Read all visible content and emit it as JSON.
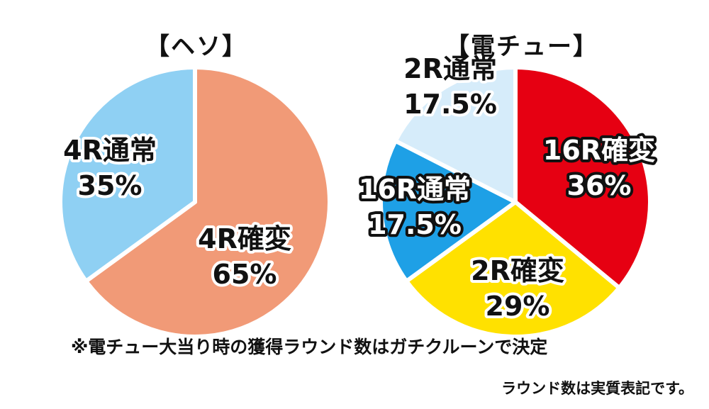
{
  "chart_data": [
    {
      "type": "pie",
      "title": "【ヘソ】",
      "slices": [
        {
          "name": "4R確変",
          "value": 65,
          "value_label": "65%",
          "color": "#f19a77"
        },
        {
          "name": "4R通常",
          "value": 35,
          "value_label": "35%",
          "color": "#8fd0f3"
        }
      ]
    },
    {
      "type": "pie",
      "title": "【電チュー】",
      "slices": [
        {
          "name": "16R確変",
          "value": 36,
          "value_label": "36%",
          "color": "#e60012",
          "label_color": "#ffffff"
        },
        {
          "name": "2R確変",
          "value": 29,
          "value_label": "29%",
          "color": "#ffe100",
          "label_color": "#111111"
        },
        {
          "name": "16R通常",
          "value": 17.5,
          "value_label": "17.5%",
          "color": "#1ea0e6",
          "label_color": "#ffffff"
        },
        {
          "name": "2R通常",
          "value": 17.5,
          "value_label": "17.5%",
          "color": "#d6ecfa",
          "label_color": "#111111"
        }
      ]
    }
  ],
  "note": "※電チュー大当り時の獲得ラウンド数はガチクルーンで決定",
  "footnote": "ラウンド数は実質表記です。"
}
